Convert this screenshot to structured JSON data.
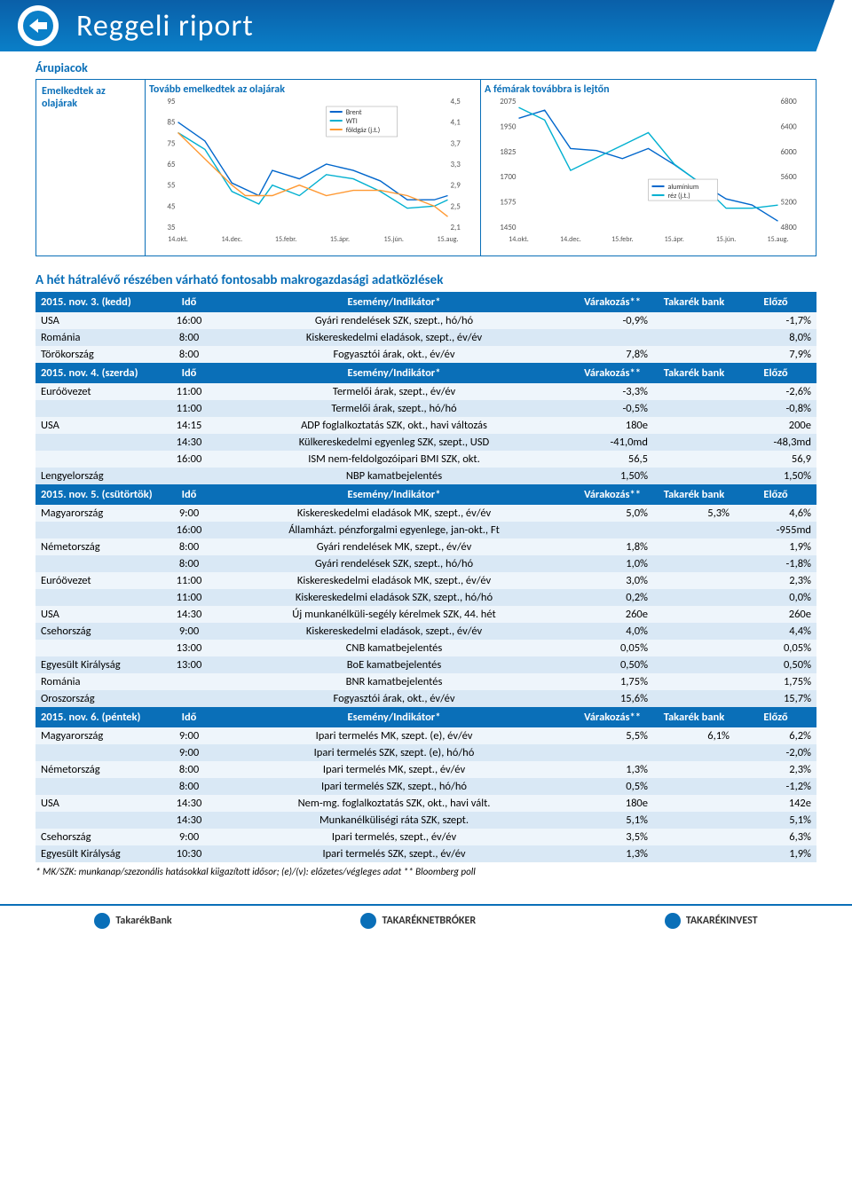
{
  "header": {
    "title": "Reggeli riport"
  },
  "commodities": {
    "section_title": "Árupiacok",
    "sidebar": "Emelkedtek az olajárak",
    "chart1": {
      "title": "Tovább emelkedtek az olajárak",
      "left_axis": [
        95,
        85,
        75,
        65,
        55,
        45,
        35
      ],
      "right_axis": [
        "4,5",
        "4,1",
        "3,7",
        "3,3",
        "2,9",
        "2,5",
        "2,1"
      ],
      "x_labels": [
        "14.okt.",
        "14.dec.",
        "15.febr.",
        "15.ápr.",
        "15.jún.",
        "15.aug."
      ],
      "legend": [
        "Brent",
        "WTI",
        "földgáz (j.t.)"
      ],
      "colors": {
        "brent": "#0066cc",
        "wti": "#00b0d0",
        "gas": "#ff9933",
        "axis": "#666"
      },
      "brent_pts": [
        [
          0,
          85
        ],
        [
          10,
          76
        ],
        [
          20,
          56
        ],
        [
          30,
          50
        ],
        [
          35,
          62
        ],
        [
          45,
          58
        ],
        [
          55,
          65
        ],
        [
          65,
          62
        ],
        [
          75,
          57
        ],
        [
          85,
          48
        ],
        [
          95,
          48
        ],
        [
          100,
          50
        ]
      ],
      "wti_pts": [
        [
          0,
          80
        ],
        [
          10,
          72
        ],
        [
          20,
          52
        ],
        [
          30,
          46
        ],
        [
          35,
          55
        ],
        [
          45,
          50
        ],
        [
          55,
          60
        ],
        [
          65,
          58
        ],
        [
          75,
          52
        ],
        [
          85,
          44
        ],
        [
          95,
          45
        ],
        [
          100,
          48
        ]
      ],
      "gas_pts": [
        [
          0,
          3.9
        ],
        [
          10,
          3.4
        ],
        [
          20,
          2.9
        ],
        [
          25,
          2.7
        ],
        [
          35,
          2.7
        ],
        [
          45,
          2.9
        ],
        [
          55,
          2.7
        ],
        [
          65,
          2.8
        ],
        [
          75,
          2.8
        ],
        [
          85,
          2.7
        ],
        [
          95,
          2.5
        ],
        [
          100,
          2.3
        ]
      ]
    },
    "chart2": {
      "title": "A fémárak továbbra is lejtőn",
      "left_axis": [
        2075,
        1950,
        1825,
        1700,
        1575,
        1450
      ],
      "right_axis": [
        6800,
        6400,
        6000,
        5600,
        5200,
        4800
      ],
      "x_labels": [
        "14.okt.",
        "14.dec.",
        "15.febr.",
        "15.ápr.",
        "15.jún.",
        "15.aug."
      ],
      "legend": [
        "alumínium",
        "réz (j.t.)"
      ],
      "colors": {
        "al": "#0066cc",
        "cu": "#00b0d0"
      },
      "al_pts": [
        [
          0,
          1990
        ],
        [
          10,
          2030
        ],
        [
          20,
          1840
        ],
        [
          30,
          1830
        ],
        [
          40,
          1790
        ],
        [
          50,
          1840
        ],
        [
          60,
          1760
        ],
        [
          70,
          1670
        ],
        [
          80,
          1590
        ],
        [
          90,
          1560
        ],
        [
          100,
          1480
        ]
      ],
      "cu_pts": [
        [
          0,
          6700
        ],
        [
          10,
          6500
        ],
        [
          20,
          5700
        ],
        [
          30,
          5900
        ],
        [
          40,
          6100
        ],
        [
          50,
          6300
        ],
        [
          60,
          5800
        ],
        [
          70,
          5500
        ],
        [
          80,
          5100
        ],
        [
          90,
          5100
        ],
        [
          100,
          5150
        ]
      ]
    }
  },
  "macro": {
    "title": "A hét hátralévő részében várható fontosabb makrogazdasági adatközlések",
    "header_cols": [
      "Idő",
      "Esemény/Indikátor*",
      "Várakozás**",
      "Takarék bank",
      "Előző"
    ],
    "days": [
      {
        "date": "2015. nov. 3. (kedd)",
        "rows": [
          [
            "USA",
            "16:00",
            "Gyári rendelések SZK, szept., hó/hó",
            "-0,9%",
            "",
            "-1,7%"
          ],
          [
            "Románia",
            "8:00",
            "Kiskereskedelmi eladások, szept., év/év",
            "",
            "",
            "8,0%"
          ],
          [
            "Törökország",
            "8:00",
            "Fogyasztói árak, okt., év/év",
            "7,8%",
            "",
            "7,9%"
          ]
        ]
      },
      {
        "date": "2015. nov. 4. (szerda)",
        "rows": [
          [
            "Euróövezet",
            "11:00",
            "Termelői árak, szept., év/év",
            "-3,3%",
            "",
            "-2,6%"
          ],
          [
            "",
            "11:00",
            "Termelői árak, szept., hó/hó",
            "-0,5%",
            "",
            "-0,8%"
          ],
          [
            "USA",
            "14:15",
            "ADP foglalkoztatás SZK, okt., havi változás",
            "180e",
            "",
            "200e"
          ],
          [
            "",
            "14:30",
            "Külkereskedelmi egyenleg SZK, szept., USD",
            "-41,0md",
            "",
            "-48,3md"
          ],
          [
            "",
            "16:00",
            "ISM nem-feldolgozóipari BMI SZK, okt.",
            "56,5",
            "",
            "56,9"
          ],
          [
            "Lengyelország",
            "",
            "NBP kamatbejelentés",
            "1,50%",
            "",
            "1,50%"
          ]
        ]
      },
      {
        "date": "2015. nov. 5. (csütörtök)",
        "rows": [
          [
            "Magyarország",
            "9:00",
            "Kiskereskedelmi eladások MK, szept., év/év",
            "5,0%",
            "5,3%",
            "4,6%"
          ],
          [
            "",
            "16:00",
            "Államházt. pénzforgalmi egyenlege, jan-okt., Ft",
            "",
            "",
            "-955md"
          ],
          [
            "Németország",
            "8:00",
            "Gyári rendelések MK, szept., év/év",
            "1,8%",
            "",
            "1,9%"
          ],
          [
            "",
            "8:00",
            "Gyári rendelések SZK, szept., hó/hó",
            "1,0%",
            "",
            "-1,8%"
          ],
          [
            "Euróövezet",
            "11:00",
            "Kiskereskedelmi eladások MK, szept., év/év",
            "3,0%",
            "",
            "2,3%"
          ],
          [
            "",
            "11:00",
            "Kiskereskedelmi eladások SZK, szept., hó/hó",
            "0,2%",
            "",
            "0,0%"
          ],
          [
            "USA",
            "14:30",
            "Új munkanélküli-segély kérelmek SZK, 44. hét",
            "260e",
            "",
            "260e"
          ],
          [
            "Csehország",
            "9:00",
            "Kiskereskedelmi eladások, szept., év/év",
            "4,0%",
            "",
            "4,4%"
          ],
          [
            "",
            "13:00",
            "CNB kamatbejelentés",
            "0,05%",
            "",
            "0,05%"
          ],
          [
            "Egyesült Királyság",
            "13:00",
            "BoE kamatbejelentés",
            "0,50%",
            "",
            "0,50%"
          ],
          [
            "Románia",
            "",
            "BNR kamatbejelentés",
            "1,75%",
            "",
            "1,75%"
          ],
          [
            "Oroszország",
            "",
            "Fogyasztói árak, okt., év/év",
            "15,6%",
            "",
            "15,7%"
          ]
        ]
      },
      {
        "date": "2015. nov. 6. (péntek)",
        "rows": [
          [
            "Magyarország",
            "9:00",
            "Ipari termelés MK, szept. (e), év/év",
            "5,5%",
            "6,1%",
            "6,2%"
          ],
          [
            "",
            "9:00",
            "Ipari termelés SZK, szept. (e), hó/hó",
            "",
            "",
            "-2,0%"
          ],
          [
            "Németország",
            "8:00",
            "Ipari termelés MK, szept., év/év",
            "1,3%",
            "",
            "2,3%"
          ],
          [
            "",
            "8:00",
            "Ipari termelés SZK, szept., hó/hó",
            "0,5%",
            "",
            "-1,2%"
          ],
          [
            "USA",
            "14:30",
            "Nem-mg. foglalkoztatás SZK, okt., havi vált.",
            "180e",
            "",
            "142e"
          ],
          [
            "",
            "14:30",
            "Munkanélküliségi ráta SZK, szept.",
            "5,1%",
            "",
            "5,1%"
          ],
          [
            "Csehország",
            "9:00",
            "Ipari termelés, szept., év/év",
            "3,5%",
            "",
            "6,3%"
          ],
          [
            "Egyesült Királyság",
            "10:30",
            "Ipari termelés SZK, szept., év/év",
            "1,3%",
            "",
            "1,9%"
          ]
        ]
      }
    ],
    "footnote": "* MK/SZK: munkanap/szezonális hatásokkal kiigazított idősor; (e)/(v): előzetes/végleges adat       ** Bloomberg poll"
  },
  "footer": {
    "logos": [
      "TakarékBank",
      "TAKARÉKNETBRÓKER",
      "TAKARÉKINVEST"
    ]
  }
}
